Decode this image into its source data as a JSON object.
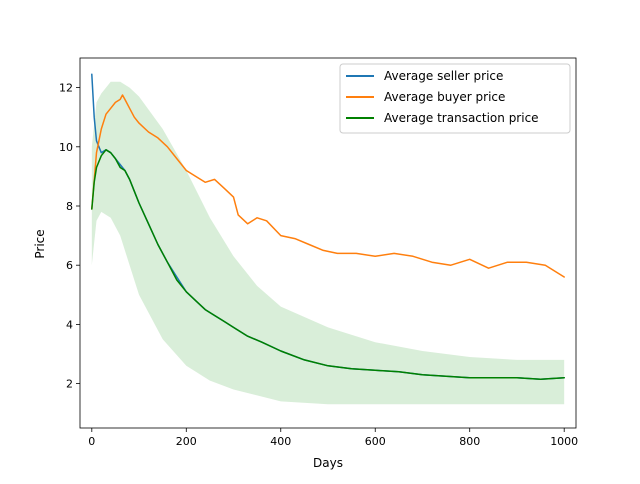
{
  "chart_data": {
    "type": "line",
    "title": "",
    "xlabel": "Days",
    "ylabel": "Price",
    "xlim": [
      -25,
      1025
    ],
    "ylim": [
      0.5,
      13.0
    ],
    "x_ticks": [
      0,
      200,
      400,
      600,
      800,
      1000
    ],
    "y_ticks": [
      2,
      4,
      6,
      8,
      10,
      12
    ],
    "grid": false,
    "legend_position": "top-right",
    "series": [
      {
        "name": "Average seller price",
        "color": "#1f77b4",
        "x": [
          0,
          5,
          10,
          20,
          30,
          40,
          50,
          60,
          70,
          80,
          90,
          100,
          120,
          140,
          160,
          180,
          200,
          220,
          240,
          260,
          280,
          300,
          330,
          360,
          400,
          450,
          500,
          550,
          600,
          650,
          700,
          750,
          800,
          850,
          900,
          950,
          1000
        ],
        "y": [
          12.45,
          11.0,
          10.2,
          9.8,
          9.9,
          9.8,
          9.6,
          9.4,
          9.2,
          8.9,
          8.5,
          8.1,
          7.4,
          6.7,
          6.1,
          5.6,
          5.1,
          4.8,
          4.5,
          4.3,
          4.1,
          3.9,
          3.6,
          3.4,
          3.1,
          2.8,
          2.6,
          2.5,
          2.45,
          2.4,
          2.3,
          2.25,
          2.2,
          2.2,
          2.2,
          2.15,
          2.2
        ]
      },
      {
        "name": "Average buyer price",
        "color": "#ff7f0e",
        "x": [
          0,
          10,
          20,
          30,
          40,
          50,
          60,
          65,
          70,
          80,
          90,
          100,
          120,
          140,
          160,
          180,
          200,
          220,
          240,
          260,
          280,
          300,
          310,
          330,
          350,
          370,
          400,
          430,
          460,
          490,
          520,
          560,
          600,
          640,
          680,
          720,
          760,
          800,
          840,
          880,
          920,
          960,
          1000
        ],
        "y": [
          7.9,
          9.8,
          10.6,
          11.1,
          11.3,
          11.5,
          11.6,
          11.75,
          11.6,
          11.3,
          11.0,
          10.8,
          10.5,
          10.3,
          10.0,
          9.6,
          9.2,
          9.0,
          8.8,
          8.9,
          8.6,
          8.3,
          7.7,
          7.4,
          7.6,
          7.5,
          7.0,
          6.9,
          6.7,
          6.5,
          6.4,
          6.4,
          6.3,
          6.4,
          6.3,
          6.1,
          6.0,
          6.2,
          5.9,
          6.1,
          6.1,
          6.0,
          5.6
        ]
      },
      {
        "name": "Average transaction price",
        "color": "#008000",
        "x": [
          0,
          5,
          10,
          20,
          30,
          40,
          50,
          60,
          70,
          80,
          90,
          100,
          120,
          140,
          160,
          180,
          200,
          220,
          240,
          260,
          280,
          300,
          330,
          360,
          400,
          450,
          500,
          550,
          600,
          650,
          700,
          750,
          800,
          850,
          900,
          950,
          1000
        ],
        "y": [
          7.9,
          8.8,
          9.3,
          9.7,
          9.9,
          9.8,
          9.6,
          9.3,
          9.2,
          8.9,
          8.5,
          8.1,
          7.4,
          6.7,
          6.1,
          5.5,
          5.1,
          4.8,
          4.5,
          4.3,
          4.1,
          3.9,
          3.6,
          3.4,
          3.1,
          2.8,
          2.6,
          2.5,
          2.45,
          2.4,
          2.3,
          2.25,
          2.2,
          2.2,
          2.2,
          2.15,
          2.2
        ]
      }
    ],
    "transaction_spread_band": {
      "color": "#2ca02c",
      "x": [
        0,
        10,
        20,
        40,
        60,
        80,
        100,
        150,
        200,
        250,
        300,
        350,
        400,
        500,
        600,
        700,
        800,
        900,
        1000
      ],
      "lower": [
        6.0,
        7.5,
        7.8,
        7.6,
        7.0,
        6.0,
        5.0,
        3.5,
        2.6,
        2.1,
        1.8,
        1.6,
        1.4,
        1.3,
        1.3,
        1.3,
        1.3,
        1.3,
        1.3
      ],
      "upper": [
        10.0,
        11.5,
        11.8,
        12.2,
        12.2,
        12.0,
        11.7,
        10.6,
        9.2,
        7.6,
        6.3,
        5.3,
        4.6,
        3.9,
        3.4,
        3.1,
        2.9,
        2.8,
        2.8
      ]
    }
  }
}
